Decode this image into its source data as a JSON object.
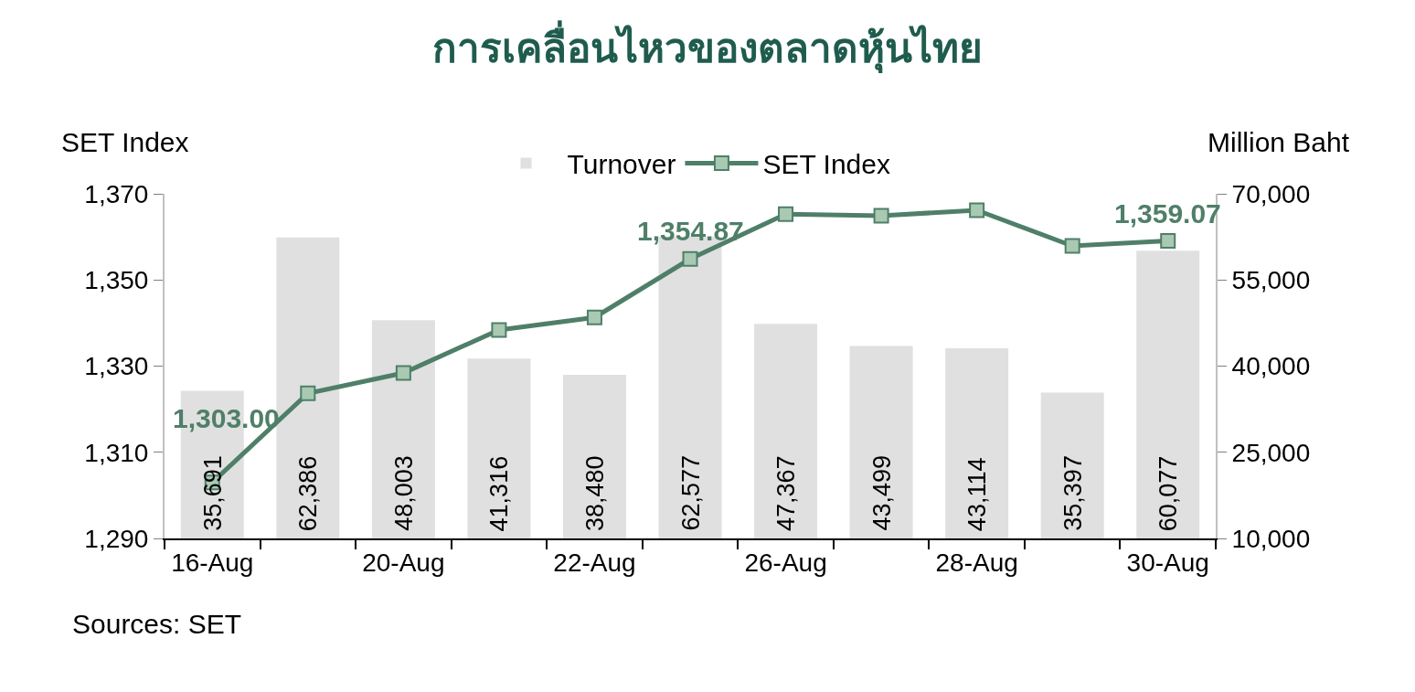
{
  "chart_data": {
    "type": "bar",
    "title": "การเคลื่อนไหวของตลาดหุ้นไทย",
    "ylabel": "SET Index",
    "y2label": "Million Baht",
    "categories": [
      "16-Aug",
      null,
      "20-Aug",
      null,
      "22-Aug",
      null,
      "26-Aug",
      null,
      "28-Aug",
      null,
      "30-Aug"
    ],
    "series": [
      {
        "name": "Turnover",
        "axis": "y2",
        "color": "#e0e0e0",
        "values": [
          35691,
          62386,
          48003,
          41316,
          38480,
          62577,
          47367,
          43499,
          43114,
          35397,
          60077
        ],
        "value_labels": [
          "35,691",
          "62,386",
          "48,003",
          "41,316",
          "38,480",
          "62,577",
          "47,367",
          "43,499",
          "43,114",
          "35,397",
          "60,077"
        ]
      },
      {
        "name": "SET Index",
        "type": "line",
        "axis": "y",
        "color": "#4f7f68",
        "marker": "square",
        "values": [
          1303.0,
          1323.7,
          1328.4,
          1338.4,
          1341.3,
          1354.87,
          1365.3,
          1364.9,
          1366.2,
          1357.9,
          1359.07
        ],
        "value_labels": [
          "1,303.00",
          null,
          null,
          null,
          null,
          "1,354.87",
          null,
          null,
          null,
          null,
          "1,359.07"
        ]
      }
    ],
    "ylim": [
      1290,
      1370
    ],
    "yticks": [
      {
        "value": 1290,
        "label": "1,290"
      },
      {
        "value": 1310,
        "label": "1,310"
      },
      {
        "value": 1330,
        "label": "1,330"
      },
      {
        "value": 1350,
        "label": "1,350"
      },
      {
        "value": 1370,
        "label": "1,370"
      }
    ],
    "y2lim": [
      10000,
      70000
    ],
    "y2ticks": [
      {
        "value": 10000,
        "label": "10,000"
      },
      {
        "value": 25000,
        "label": "25,000"
      },
      {
        "value": 40000,
        "label": "40,000"
      },
      {
        "value": 55000,
        "label": "55,000"
      },
      {
        "value": 70000,
        "label": "70,000"
      }
    ],
    "legend": "top",
    "annotations": [
      "Sources: SET"
    ]
  }
}
